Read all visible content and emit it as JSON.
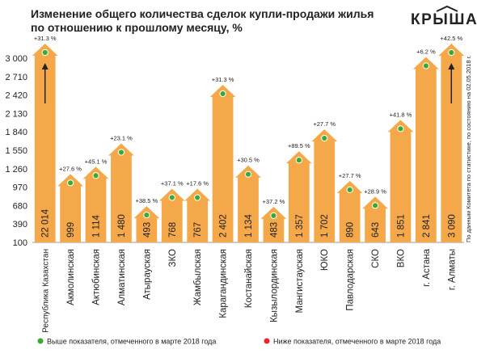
{
  "chart_data": {
    "type": "house-bar",
    "title_lines": [
      "Изменение общего количества сделок купли-продажи жилья",
      "по отношению к прошлому месяцу, %"
    ],
    "logo": "КРЫША",
    "source_note": "По данным Комитета по статистике, по состоянию на 02.05.2018 г.",
    "categories": [
      "Республика Казахстан",
      "Акмолинская",
      "Актюбинская",
      "Алматинская",
      "Атырауская",
      "ЗКО",
      "Жамбылская",
      "Карагандинская",
      "Костанайская",
      "Кызылординская",
      "Мангистауская",
      "ЮКО",
      "Павлодарская",
      "СКО",
      "ВКО",
      "г. Астана",
      "г. Алматы"
    ],
    "values": [
      22014,
      999,
      1114,
      1480,
      493,
      768,
      767,
      2402,
      1134,
      483,
      1357,
      1702,
      890,
      643,
      1851,
      2841,
      3090
    ],
    "value_labels": [
      "22 014",
      "999",
      "1 114",
      "1 480",
      "493",
      "768",
      "767",
      "2 402",
      "1 134",
      "483",
      "1 357",
      "1 702",
      "890",
      "643",
      "1 851",
      "2 841",
      "3 090"
    ],
    "change_labels": [
      "+31.3 %",
      "+27.6 %",
      "+45.1 %",
      "+23.1 %",
      "+38.5 %",
      "+37.1 %",
      "+17.6 %",
      "+31.3 %",
      "+30.5 %",
      "+37.2 %",
      "+89.5 %",
      "+27.7 %",
      "+27.7 %",
      "+28.9 %",
      "+41.8 %",
      "+6.2 %",
      "+42.5 %"
    ],
    "dot_status": [
      "above",
      "above",
      "above",
      "above",
      "above",
      "above",
      "above",
      "above",
      "above",
      "above",
      "above",
      "above",
      "above",
      "above",
      "above",
      "above",
      "above"
    ],
    "color": "#f5a84a",
    "legend": [
      {
        "key": "above",
        "color": "#3aaa35",
        "label": "Выше показателя, отмеченного в марте 2018 года"
      },
      {
        "key": "below",
        "color": "#e5282a",
        "label": "Ниже показателя, отмеченного в марте 2018 года"
      }
    ],
    "ylim": [
      100,
      3000
    ],
    "yticks": [
      100,
      390,
      680,
      970,
      {
        "value": 1260,
        "label": "1 260"
      },
      {
        "value": 1550,
        "label": "1 550"
      },
      {
        "value": 1840,
        "label": "1 840"
      },
      {
        "value": 2130,
        "label": "2 130"
      },
      {
        "value": 2420,
        "label": "2 420"
      },
      {
        "value": 2710,
        "label": "2 710"
      },
      {
        "value": 3000,
        "label": "3 000"
      }
    ]
  }
}
